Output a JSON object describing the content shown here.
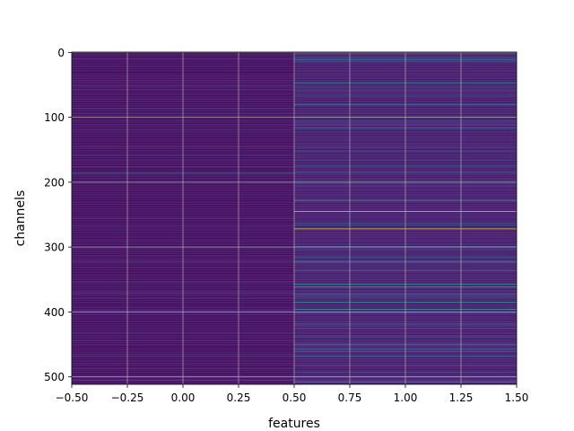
{
  "chart_data": {
    "type": "heatmap",
    "xlabel": "features",
    "ylabel": "channels",
    "xlim": [
      -0.5,
      1.5
    ],
    "ylim": [
      511.5,
      -0.5
    ],
    "y_inverted": true,
    "x_ticks": [
      -0.5,
      -0.25,
      0.0,
      0.25,
      0.5,
      0.75,
      1.0,
      1.25,
      1.5
    ],
    "x_tick_labels": [
      "−0.50",
      "−0.25",
      "0.00",
      "0.25",
      "0.50",
      "0.75",
      "1.00",
      "1.25",
      "1.50"
    ],
    "y_ticks": [
      0,
      100,
      200,
      300,
      400,
      500
    ],
    "y_tick_labels": [
      "0",
      "100",
      "200",
      "300",
      "400",
      "500"
    ],
    "grid": true,
    "colormap": "viridis",
    "colormap_stops": [
      "#440154",
      "#482475",
      "#414487",
      "#355f8d",
      "#2a788e",
      "#21918c",
      "#22a884",
      "#44bf70",
      "#7ad151",
      "#bddf26",
      "#fde725"
    ],
    "rows": 512,
    "columns": 2,
    "column_x": [
      0,
      1
    ],
    "background_level": [
      0.03,
      0.07
    ],
    "highlight_rows": [
      {
        "col": 0,
        "channel": 10,
        "value": 0.12
      },
      {
        "col": 0,
        "channel": 57,
        "value": 0.1
      },
      {
        "col": 0,
        "channel": 95,
        "value": 0.12
      },
      {
        "col": 0,
        "channel": 186,
        "value": 0.32
      },
      {
        "col": 0,
        "channel": 200,
        "value": 0.18
      },
      {
        "col": 0,
        "channel": 322,
        "value": 0.14
      },
      {
        "col": 0,
        "channel": 404,
        "value": 0.1
      },
      {
        "col": 0,
        "channel": 505,
        "value": 0.22
      },
      {
        "col": 1,
        "channel": 2,
        "value": 0.45
      },
      {
        "col": 1,
        "channel": 8,
        "value": 0.3
      },
      {
        "col": 1,
        "channel": 11,
        "value": 0.38
      },
      {
        "col": 1,
        "channel": 47,
        "value": 0.48
      },
      {
        "col": 1,
        "channel": 80,
        "value": 0.28
      },
      {
        "col": 1,
        "channel": 100,
        "value": 0.25
      },
      {
        "col": 1,
        "channel": 175,
        "value": 0.32
      },
      {
        "col": 1,
        "channel": 185,
        "value": 0.3
      },
      {
        "col": 1,
        "channel": 228,
        "value": 0.55
      },
      {
        "col": 1,
        "channel": 245,
        "value": 0.88
      },
      {
        "col": 1,
        "channel": 272,
        "value": 0.95
      },
      {
        "col": 1,
        "channel": 299,
        "value": 0.28
      },
      {
        "col": 1,
        "channel": 316,
        "value": 0.32
      },
      {
        "col": 1,
        "channel": 322,
        "value": 0.38
      },
      {
        "col": 1,
        "channel": 336,
        "value": 0.42
      },
      {
        "col": 1,
        "channel": 357,
        "value": 0.55
      },
      {
        "col": 1,
        "channel": 362,
        "value": 0.4
      },
      {
        "col": 1,
        "channel": 372,
        "value": 0.35
      },
      {
        "col": 1,
        "channel": 385,
        "value": 0.5
      },
      {
        "col": 1,
        "channel": 396,
        "value": 0.52
      },
      {
        "col": 1,
        "channel": 450,
        "value": 0.25
      },
      {
        "col": 1,
        "channel": 468,
        "value": 0.3
      },
      {
        "col": 1,
        "channel": 500,
        "value": 0.35
      },
      {
        "col": 1,
        "channel": 508,
        "value": 0.45
      }
    ]
  }
}
